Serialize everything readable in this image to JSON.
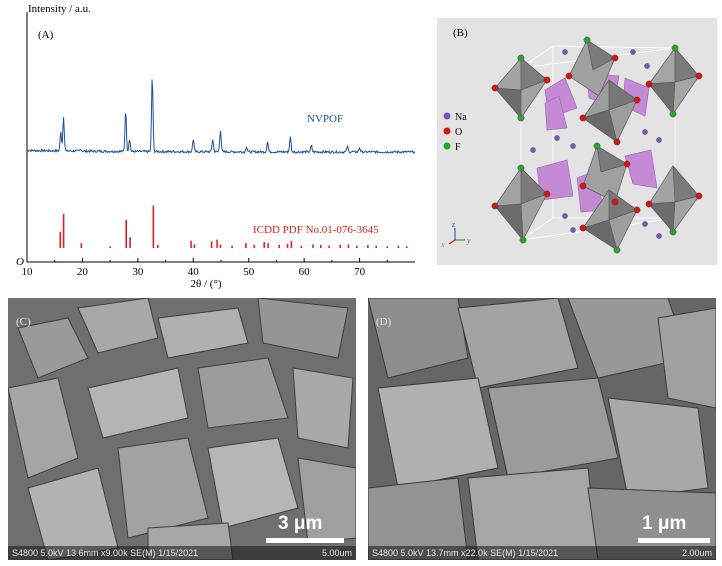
{
  "panel_a": {
    "label": "(A)",
    "ylabel": "Intensity / a.u.",
    "xlabel": "2θ / (°)",
    "origin_label": "O",
    "series_label": "NVPOF",
    "reference_label": "ICDD PDF No.01-076-3645",
    "colors": {
      "pattern": "#1f4fa0",
      "reference": "#e02020"
    }
  },
  "chart_data": {
    "type": "line",
    "xlabel": "2θ / (°)",
    "ylabel": "Intensity / a.u.",
    "xlim": [
      10,
      80
    ],
    "xticks": [
      10,
      20,
      30,
      40,
      50,
      60,
      70
    ],
    "grid": false,
    "series": [
      {
        "name": "NVPOF",
        "peaks": [
          {
            "x": 16.1,
            "y": 0.18
          },
          {
            "x": 16.6,
            "y": 0.33
          },
          {
            "x": 19.7,
            "y": 0.02
          },
          {
            "x": 27.8,
            "y": 0.39
          },
          {
            "x": 28.5,
            "y": 0.12
          },
          {
            "x": 32.6,
            "y": 0.72
          },
          {
            "x": 40.0,
            "y": 0.12
          },
          {
            "x": 43.5,
            "y": 0.12
          },
          {
            "x": 44.9,
            "y": 0.21
          },
          {
            "x": 49.6,
            "y": 0.05
          },
          {
            "x": 53.4,
            "y": 0.1
          },
          {
            "x": 57.5,
            "y": 0.14
          },
          {
            "x": 61.3,
            "y": 0.06
          },
          {
            "x": 67.8,
            "y": 0.05
          },
          {
            "x": 70.0,
            "y": 0.04
          }
        ]
      },
      {
        "name": "ICDD PDF No.01-076-3645",
        "sticks": [
          {
            "x": 16.0,
            "y": 0.27
          },
          {
            "x": 16.6,
            "y": 0.57
          },
          {
            "x": 19.8,
            "y": 0.08
          },
          {
            "x": 25.0,
            "y": 0.03
          },
          {
            "x": 27.9,
            "y": 0.47
          },
          {
            "x": 28.6,
            "y": 0.18
          },
          {
            "x": 32.8,
            "y": 0.71
          },
          {
            "x": 33.6,
            "y": 0.05
          },
          {
            "x": 39.6,
            "y": 0.12
          },
          {
            "x": 40.2,
            "y": 0.06
          },
          {
            "x": 43.3,
            "y": 0.11
          },
          {
            "x": 44.3,
            "y": 0.14
          },
          {
            "x": 44.9,
            "y": 0.06
          },
          {
            "x": 47.0,
            "y": 0.04
          },
          {
            "x": 49.5,
            "y": 0.08
          },
          {
            "x": 51.0,
            "y": 0.05
          },
          {
            "x": 52.8,
            "y": 0.1
          },
          {
            "x": 53.5,
            "y": 0.08
          },
          {
            "x": 55.5,
            "y": 0.05
          },
          {
            "x": 57.0,
            "y": 0.07
          },
          {
            "x": 57.7,
            "y": 0.12
          },
          {
            "x": 59.5,
            "y": 0.04
          },
          {
            "x": 61.6,
            "y": 0.06
          },
          {
            "x": 63.0,
            "y": 0.05
          },
          {
            "x": 64.5,
            "y": 0.04
          },
          {
            "x": 66.5,
            "y": 0.05
          },
          {
            "x": 68.0,
            "y": 0.06
          },
          {
            "x": 69.5,
            "y": 0.04
          },
          {
            "x": 71.5,
            "y": 0.05
          },
          {
            "x": 73.0,
            "y": 0.04
          },
          {
            "x": 75.0,
            "y": 0.03
          },
          {
            "x": 77.0,
            "y": 0.04
          },
          {
            "x": 78.5,
            "y": 0.03
          }
        ]
      }
    ]
  },
  "panel_b": {
    "label": "(B)",
    "legend": [
      {
        "name": "Na",
        "color": "#7a55b8"
      },
      {
        "name": "O",
        "color": "#d01818"
      },
      {
        "name": "F",
        "color": "#2ea02e"
      }
    ],
    "axes_labels": {
      "x": "x",
      "y": "y",
      "z": "z"
    },
    "colors": {
      "octahedron": "#8f8f8f",
      "tetrahedron": "#c58ad6"
    }
  },
  "panel_c": {
    "label": "(C)",
    "scale_text": "3 μm",
    "info_left": "S4800 5.0kV 13.6mm x9.00k SE(M) 1/15/2021",
    "info_right": "5.00um"
  },
  "panel_d": {
    "label": "(D)",
    "scale_text": "1 μm",
    "info_left": "S4800 5.0kV 13.7mm x22.0k SE(M) 1/15/2021",
    "info_right": "2.00um"
  }
}
